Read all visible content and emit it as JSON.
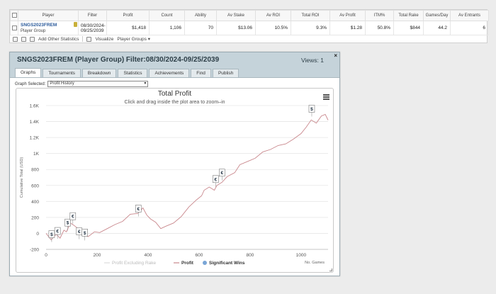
{
  "table": {
    "headers": [
      "",
      "Player",
      "Filter",
      "Profit",
      "Count",
      "Ability",
      "Av Stake",
      "Av ROI",
      "Total ROI",
      "Av Profit",
      "ITM%",
      "Total Rake",
      "Games/Day",
      "Av Entrants"
    ],
    "row": {
      "player_name": "SNGS2023FREM",
      "player_sub": "Player Group",
      "filter": "08/30/2024-09/25/2039",
      "profit": "$1,418",
      "count": "1,106",
      "ability": "70",
      "av_stake": "$13.06",
      "av_roi": "10.5%",
      "total_roi": "9.3%",
      "av_profit": "$1.28",
      "itm": "50.8%",
      "total_rake": "$844",
      "games_day": "44.2",
      "av_entrants": "6"
    },
    "toolbar": {
      "add_stats": "Add Other Statistics",
      "visualize": "Visualize",
      "player_groups": "Player Groups"
    }
  },
  "window": {
    "title": "SNGS2023FREM (Player Group) Filter:08/30/2024-09/25/2039",
    "views": "Views: 1",
    "close": "×",
    "tabs": [
      "Graphs",
      "Tournaments",
      "Breakdown",
      "Statistics",
      "Achievements",
      "Find",
      "Publish"
    ],
    "active_tab": 0,
    "graph_selected_label": "Graph Selected:",
    "graph_selected_value": "Profit History"
  },
  "chart_data": {
    "type": "line",
    "title": "Total Profit",
    "subtitle": "Click and drag inside the plot area to zoom–in",
    "ylabel": "Cumulative Total (USD)",
    "xlabel": "No. Games",
    "xlim": [
      0,
      1106
    ],
    "ylim": [
      -200,
      1600
    ],
    "x_ticks": [
      0,
      200,
      400,
      600,
      800,
      1000
    ],
    "y_ticks": [
      -200,
      0,
      200,
      400,
      600,
      800,
      1000,
      1200,
      1400,
      1600
    ],
    "y_tick_labels": [
      "-200",
      "0",
      "200",
      "400",
      "600",
      "800",
      "1K",
      "1.2K",
      "1.4K",
      "1.6K"
    ],
    "grid": true,
    "legend": {
      "position": "bottom",
      "items": [
        "Profit Excluding Rake",
        "Profit",
        "Significant Wins"
      ]
    },
    "series": [
      {
        "name": "Profit",
        "color": "#c9878c",
        "points": [
          [
            0,
            0
          ],
          [
            20,
            -80
          ],
          [
            40,
            -10
          ],
          [
            55,
            -60
          ],
          [
            70,
            40
          ],
          [
            80,
            20
          ],
          [
            95,
            130
          ],
          [
            110,
            100
          ],
          [
            125,
            60
          ],
          [
            140,
            40
          ],
          [
            150,
            -20
          ],
          [
            165,
            -40
          ],
          [
            190,
            20
          ],
          [
            210,
            10
          ],
          [
            240,
            60
          ],
          [
            270,
            110
          ],
          [
            300,
            150
          ],
          [
            330,
            240
          ],
          [
            360,
            250
          ],
          [
            380,
            320
          ],
          [
            395,
            230
          ],
          [
            410,
            180
          ],
          [
            430,
            140
          ],
          [
            440,
            100
          ],
          [
            450,
            60
          ],
          [
            470,
            90
          ],
          [
            500,
            130
          ],
          [
            530,
            210
          ],
          [
            560,
            330
          ],
          [
            590,
            420
          ],
          [
            610,
            470
          ],
          [
            620,
            540
          ],
          [
            640,
            580
          ],
          [
            660,
            540
          ],
          [
            670,
            600
          ],
          [
            690,
            640
          ],
          [
            710,
            710
          ],
          [
            740,
            760
          ],
          [
            760,
            860
          ],
          [
            790,
            900
          ],
          [
            820,
            940
          ],
          [
            850,
            1020
          ],
          [
            880,
            1050
          ],
          [
            910,
            1100
          ],
          [
            940,
            1120
          ],
          [
            970,
            1180
          ],
          [
            1000,
            1250
          ],
          [
            1020,
            1330
          ],
          [
            1040,
            1420
          ],
          [
            1060,
            1380
          ],
          [
            1080,
            1470
          ],
          [
            1095,
            1490
          ],
          [
            1106,
            1418
          ]
        ]
      }
    ],
    "significant_wins": [
      {
        "x": 22,
        "y": -10,
        "icon": "$"
      },
      {
        "x": 45,
        "y": 30,
        "icon": "€"
      },
      {
        "x": 85,
        "y": 135,
        "icon": "$"
      },
      {
        "x": 105,
        "y": 215,
        "icon": "€"
      },
      {
        "x": 130,
        "y": 25,
        "icon": "€"
      },
      {
        "x": 152,
        "y": 10,
        "icon": "$"
      },
      {
        "x": 362,
        "y": 310,
        "icon": "€"
      },
      {
        "x": 665,
        "y": 680,
        "icon": "€"
      },
      {
        "x": 690,
        "y": 760,
        "icon": "€"
      },
      {
        "x": 1042,
        "y": 1560,
        "icon": "$"
      }
    ]
  }
}
